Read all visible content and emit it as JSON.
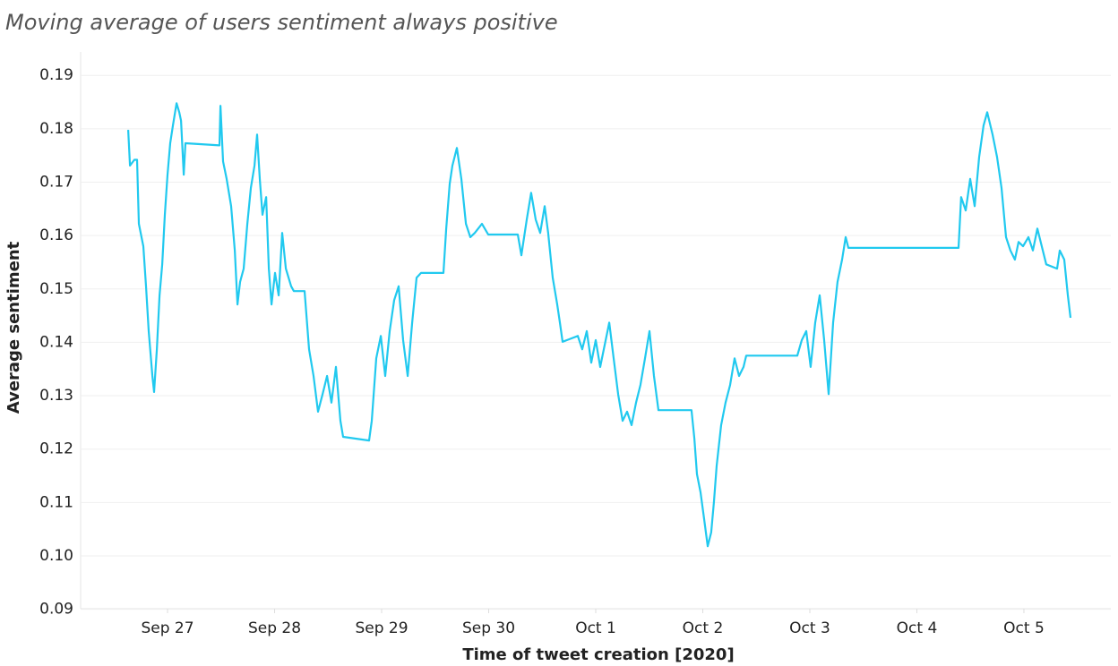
{
  "chart_data": {
    "type": "line",
    "title": "Moving average of users sentiment always positive",
    "x_label": "Time of tweet creation [2020]",
    "y_label": "Average sentiment",
    "color": "#21c9ef",
    "grid": true,
    "xlim": [
      -0.812,
      8.812
    ],
    "ylim": [
      0.0901,
      0.1944
    ],
    "xticks": [
      {
        "value": 0,
        "label": "Sep 27"
      },
      {
        "value": 1,
        "label": "Sep 28"
      },
      {
        "value": 2,
        "label": "Sep 29"
      },
      {
        "value": 3,
        "label": "Sep 30"
      },
      {
        "value": 4,
        "label": "Oct 1"
      },
      {
        "value": 5,
        "label": "Oct 2"
      },
      {
        "value": 6,
        "label": "Oct 3"
      },
      {
        "value": 7,
        "label": "Oct 4"
      },
      {
        "value": 8,
        "label": "Oct 5"
      }
    ],
    "yticks": [
      0.09,
      {
        "value": 0.1,
        "label": "0.10"
      },
      0.11,
      0.12,
      0.13,
      0.14,
      0.15,
      0.16,
      0.17,
      0.18,
      0.19
    ],
    "x": [
      -0.368,
      -0.351,
      -0.31,
      -0.285,
      -0.268,
      -0.226,
      -0.201,
      -0.176,
      -0.142,
      -0.126,
      -0.1,
      -0.075,
      -0.05,
      -0.025,
      0,
      0.025,
      0.05,
      0.084,
      0.109,
      0.126,
      0.151,
      0.167,
      0.485,
      0.494,
      0.519,
      0.552,
      0.594,
      0.628,
      0.653,
      0.678,
      0.711,
      0.745,
      0.778,
      0.812,
      0.837,
      0.862,
      0.887,
      0.921,
      0.946,
      0.971,
      1.004,
      1.038,
      1.071,
      1.105,
      1.155,
      1.18,
      1.28,
      1.322,
      1.364,
      1.406,
      1.448,
      1.49,
      1.531,
      1.573,
      1.615,
      1.64,
      1.883,
      1.908,
      1.95,
      1.992,
      2.033,
      2.075,
      2.117,
      2.159,
      2.201,
      2.243,
      2.285,
      2.326,
      2.368,
      2.577,
      2.603,
      2.636,
      2.661,
      2.703,
      2.745,
      2.787,
      2.828,
      2.87,
      2.937,
      2.996,
      3.272,
      3.305,
      3.356,
      3.397,
      3.439,
      3.481,
      3.523,
      3.556,
      3.598,
      3.64,
      3.665,
      3.69,
      3.833,
      3.874,
      3.916,
      3.958,
      4.0,
      4.042,
      4.084,
      4.126,
      4.167,
      4.209,
      4.251,
      4.293,
      4.335,
      4.377,
      4.418,
      4.46,
      4.502,
      4.544,
      4.586,
      4.895,
      4.921,
      4.946,
      4.979,
      5.013,
      5.046,
      5.079,
      5.105,
      5.13,
      5.172,
      5.213,
      5.255,
      5.297,
      5.339,
      5.381,
      5.406,
      5.883,
      5.925,
      5.967,
      6.008,
      6.05,
      6.092,
      6.134,
      6.176,
      6.218,
      6.259,
      6.301,
      6.335,
      6.36,
      7.389,
      7.414,
      7.456,
      7.498,
      7.54,
      7.582,
      7.623,
      7.657,
      7.707,
      7.749,
      7.791,
      7.833,
      7.874,
      7.916,
      7.95,
      7.992,
      8.042,
      8.084,
      8.126,
      8.167,
      8.209,
      8.31,
      8.335,
      8.377,
      8.41,
      8.435
    ],
    "values": [
      0.1798,
      0.1731,
      0.1742,
      0.1742,
      0.1622,
      0.158,
      0.1505,
      0.1421,
      0.1337,
      0.1307,
      0.1387,
      0.1488,
      0.1546,
      0.1639,
      0.1714,
      0.1773,
      0.1806,
      0.1848,
      0.1831,
      0.1815,
      0.1714,
      0.1773,
      0.1769,
      0.1843,
      0.1739,
      0.1706,
      0.1655,
      0.1572,
      0.1471,
      0.1513,
      0.1538,
      0.1622,
      0.1689,
      0.1731,
      0.1789,
      0.1706,
      0.1639,
      0.1672,
      0.1538,
      0.1471,
      0.153,
      0.1488,
      0.1605,
      0.1538,
      0.1505,
      0.1496,
      0.1496,
      0.1387,
      0.1337,
      0.127,
      0.1303,
      0.1337,
      0.1287,
      0.1354,
      0.1253,
      0.1223,
      0.1216,
      0.1253,
      0.137,
      0.1412,
      0.1337,
      0.1421,
      0.1479,
      0.1505,
      0.1404,
      0.1337,
      0.1437,
      0.1521,
      0.153,
      0.153,
      0.1613,
      0.1697,
      0.1731,
      0.1764,
      0.1706,
      0.1622,
      0.1597,
      0.1605,
      0.1622,
      0.1602,
      0.1602,
      0.1563,
      0.163,
      0.168,
      0.163,
      0.1605,
      0.1655,
      0.1605,
      0.1521,
      0.1471,
      0.1437,
      0.1401,
      0.1412,
      0.1387,
      0.1421,
      0.1362,
      0.1404,
      0.1354,
      0.1395,
      0.1437,
      0.137,
      0.1303,
      0.1253,
      0.127,
      0.1245,
      0.1287,
      0.132,
      0.137,
      0.1421,
      0.1337,
      0.1273,
      0.1273,
      0.122,
      0.1153,
      0.1119,
      0.1069,
      0.1018,
      0.1044,
      0.1102,
      0.1169,
      0.1245,
      0.1287,
      0.132,
      0.137,
      0.1337,
      0.1354,
      0.1375,
      0.1375,
      0.1404,
      0.1421,
      0.1354,
      0.1437,
      0.1488,
      0.1404,
      0.1303,
      0.1437,
      0.1513,
      0.1555,
      0.1597,
      0.1577,
      0.1577,
      0.1672,
      0.1647,
      0.1706,
      0.1655,
      0.1747,
      0.1806,
      0.1831,
      0.1789,
      0.1747,
      0.1689,
      0.1597,
      0.1572,
      0.1555,
      0.1588,
      0.158,
      0.1597,
      0.1572,
      0.1613,
      0.158,
      0.1546,
      0.1538,
      0.1572,
      0.1555,
      0.1488,
      0.1446
    ]
  }
}
